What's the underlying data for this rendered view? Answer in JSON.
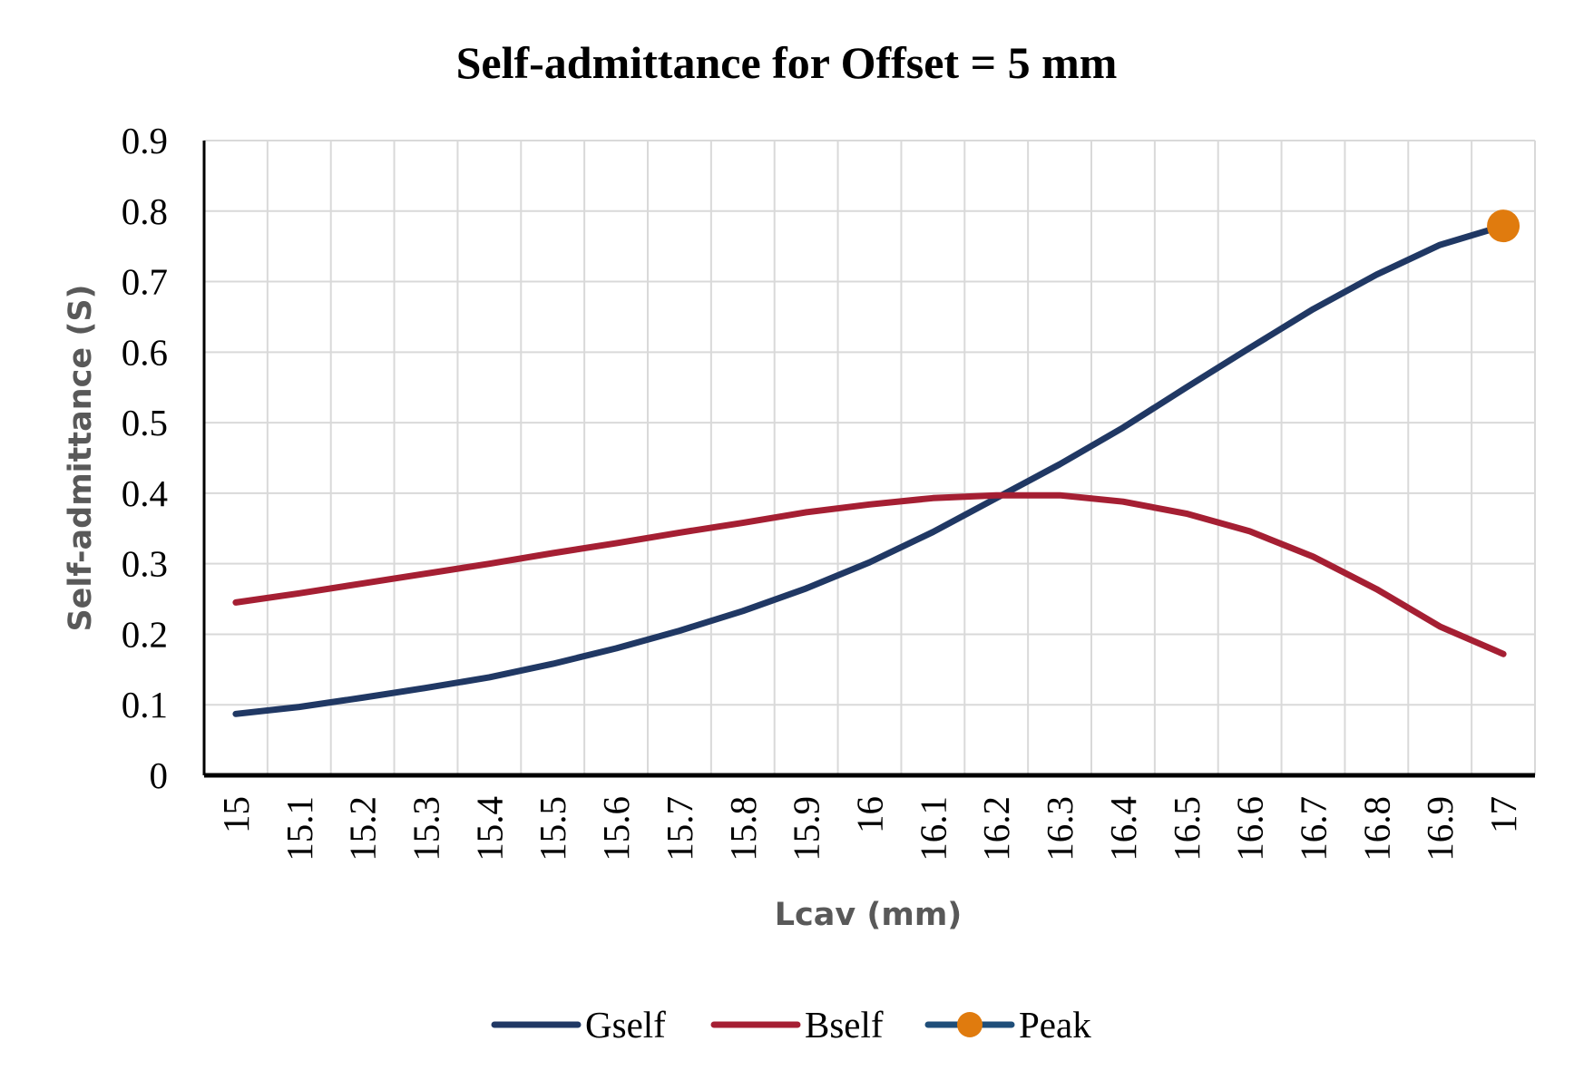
{
  "chart_data": {
    "type": "line",
    "title": "Self-admittance for Offset = 5 mm",
    "xlabel": "Lcav (mm)",
    "ylabel": "Self-admittance (S)",
    "categories": [
      "15",
      "15.1",
      "15.2",
      "15.3",
      "15.4",
      "15.5",
      "15.6",
      "15.7",
      "15.8",
      "15.9",
      "16",
      "16.1",
      "16.2",
      "16.3",
      "16.4",
      "16.5",
      "16.6",
      "16.7",
      "16.8",
      "16.9",
      "17"
    ],
    "yticks": [
      "0",
      "0.1",
      "0.2",
      "0.3",
      "0.4",
      "0.5",
      "0.6",
      "0.7",
      "0.8",
      "0.9"
    ],
    "ylim": [
      0,
      0.9
    ],
    "grid": true,
    "legend_position": "bottom",
    "series": [
      {
        "name": "Gself",
        "color": "#203864",
        "values": [
          0.087,
          0.097,
          0.11,
          0.124,
          0.139,
          0.158,
          0.18,
          0.205,
          0.233,
          0.265,
          0.302,
          0.345,
          0.393,
          0.441,
          0.493,
          0.55,
          0.606,
          0.661,
          0.71,
          0.752,
          0.779
        ]
      },
      {
        "name": "Bself",
        "color": "#A51F33",
        "values": [
          0.245,
          0.258,
          0.272,
          0.286,
          0.3,
          0.315,
          0.329,
          0.344,
          0.358,
          0.373,
          0.384,
          0.393,
          0.397,
          0.397,
          0.388,
          0.371,
          0.346,
          0.31,
          0.264,
          0.211,
          0.172
        ]
      },
      {
        "name": "Peak",
        "color": "#E07B0E",
        "line_color": "#1F4E79",
        "points": [
          {
            "x": "17",
            "y": 0.779
          }
        ]
      }
    ]
  }
}
